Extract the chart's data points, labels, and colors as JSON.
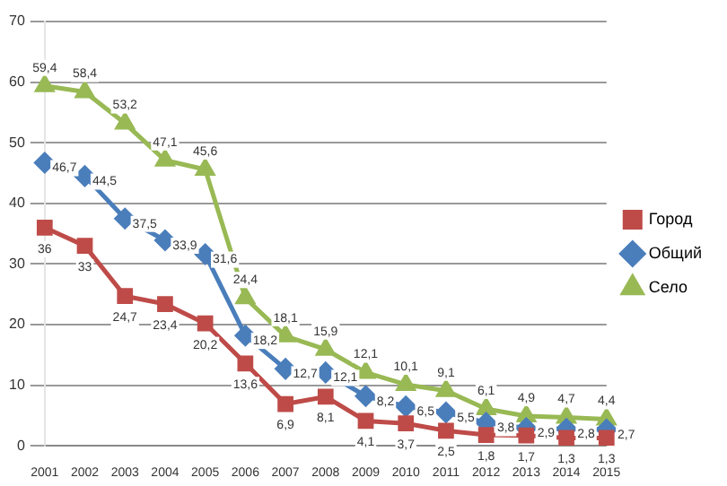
{
  "chart_data": {
    "type": "line",
    "categories": [
      "2001",
      "2002",
      "2003",
      "2004",
      "2005",
      "2006",
      "2007",
      "2008",
      "2009",
      "2010",
      "2011",
      "2012",
      "2013",
      "2014",
      "2015"
    ],
    "series": [
      {
        "name": "Город",
        "color": "#be4b48",
        "marker": "square",
        "values": [
          36,
          33,
          24.7,
          23.4,
          20.2,
          13.6,
          6.9,
          8.1,
          4.1,
          3.7,
          2.5,
          1.8,
          1.7,
          1.3,
          1.3
        ],
        "value_labels": [
          "36",
          "33",
          "24,7",
          "23,4",
          "20,2",
          "13,6",
          "6,9",
          "8,1",
          "4,1",
          "3,7",
          "2,5",
          "1,8",
          "1,7",
          "1,3",
          "1,3"
        ]
      },
      {
        "name": "Общий",
        "color": "#4a7ebb",
        "marker": "diamond",
        "values": [
          46.7,
          44.5,
          37.5,
          33.9,
          31.6,
          18.2,
          12.7,
          12.1,
          8.2,
          6.5,
          5.5,
          3.8,
          2.9,
          2.8,
          2.7
        ],
        "value_labels": [
          "46,7",
          "44,5",
          "37,5",
          "33,9",
          "31,6",
          "18,2",
          "12,7",
          "12,1",
          "8,2",
          "6,5",
          "5,5",
          "3,8",
          "2,9",
          "2,8",
          "2,7"
        ]
      },
      {
        "name": "Село",
        "color": "#98b954",
        "marker": "triangle",
        "values": [
          59.4,
          58.4,
          53.2,
          47.1,
          45.6,
          24.4,
          18.1,
          15.9,
          12.1,
          10.1,
          9.1,
          6.1,
          4.9,
          4.7,
          4.4
        ],
        "value_labels": [
          "59,4",
          "58,4",
          "53,2",
          "47,1",
          "45,6",
          "24,4",
          "18,1",
          "15,9",
          "12,1",
          "10,1",
          "9,1",
          "6,1",
          "4,9",
          "4,7",
          "4,4"
        ]
      }
    ],
    "ylim": [
      0,
      70
    ],
    "yticks": [
      0,
      10,
      20,
      30,
      40,
      50,
      60,
      70
    ],
    "grid": "y",
    "legend": "right"
  }
}
